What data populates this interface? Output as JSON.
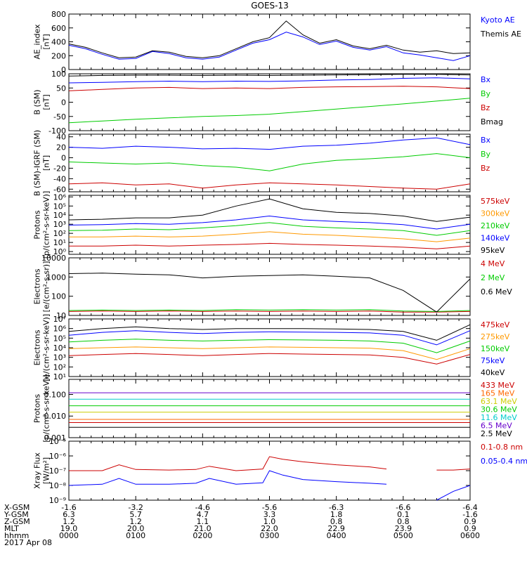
{
  "title": "GOES-13",
  "footer_date": "2017 Apr 08",
  "x_axis": {
    "rows": [
      {
        "label": "X-GSM",
        "values": [
          "-1.6",
          "-3.2",
          "-4.6",
          "-5.6",
          "-6.3",
          "-6.6",
          "-6.4"
        ]
      },
      {
        "label": "Y-GSM",
        "values": [
          "6.3",
          "5.7",
          "4.7",
          "3.3",
          "1.8",
          "0.1",
          "-1.6"
        ]
      },
      {
        "label": "Z-GSM",
        "values": [
          "1.2",
          "1.2",
          "1.1",
          "1.0",
          "0.8",
          "0.8",
          "0.9"
        ]
      },
      {
        "label": "MLT",
        "values": [
          "19.0",
          "20.0",
          "21.0",
          "22.0",
          "22.9",
          "23.9",
          "0.9"
        ]
      },
      {
        "label": "hhmm",
        "values": [
          "0000",
          "0100",
          "0200",
          "0300",
          "0400",
          "0500",
          "0600"
        ]
      }
    ]
  },
  "chart_data": [
    {
      "type": "line",
      "ylabel": "AE_index\n[nT]",
      "scale": "linear",
      "ylim": [
        0,
        800
      ],
      "ticks": [
        {
          "v": 0,
          "t": "0"
        },
        {
          "v": 200,
          "t": "200"
        },
        {
          "v": 400,
          "t": "400"
        },
        {
          "v": 600,
          "t": "600"
        },
        {
          "v": 800,
          "t": "800"
        }
      ],
      "x_hours": [
        0,
        0.25,
        0.5,
        0.75,
        1.0,
        1.25,
        1.5,
        1.75,
        2.0,
        2.25,
        2.5,
        2.75,
        3.0,
        3.25,
        3.5,
        3.75,
        4.0,
        4.25,
        4.5,
        4.75,
        5.0,
        5.25,
        5.5,
        5.75,
        6.0
      ],
      "series": [
        {
          "name": "Kyoto AE",
          "color": "#0000ff",
          "values": [
            350,
            300,
            220,
            150,
            160,
            260,
            230,
            170,
            150,
            180,
            280,
            380,
            430,
            540,
            470,
            360,
            410,
            320,
            280,
            330,
            240,
            210,
            170,
            130,
            200
          ]
        },
        {
          "name": "Themis AE",
          "color": "#000000",
          "values": [
            370,
            320,
            240,
            170,
            180,
            270,
            250,
            190,
            170,
            200,
            300,
            400,
            460,
            700,
            500,
            380,
            430,
            340,
            300,
            350,
            280,
            250,
            270,
            230,
            240
          ]
        }
      ]
    },
    {
      "type": "line",
      "ylabel": "B (SM)\n[nT]",
      "scale": "linear",
      "ylim": [
        -100,
        100
      ],
      "ticks": [
        {
          "v": -100,
          "t": "-100"
        },
        {
          "v": -50,
          "t": "-50"
        },
        {
          "v": 0,
          "t": "0"
        },
        {
          "v": 50,
          "t": "50"
        },
        {
          "v": 100,
          "t": "100"
        }
      ],
      "x_hours": [
        0,
        0.5,
        1.0,
        1.5,
        2.0,
        2.5,
        3.0,
        3.5,
        4.0,
        4.5,
        5.0,
        5.5,
        6.0
      ],
      "series": [
        {
          "name": "Bx",
          "color": "#0000ff",
          "values": [
            68,
            70,
            72,
            74,
            72,
            74,
            73,
            75,
            78,
            80,
            84,
            86,
            82
          ]
        },
        {
          "name": "By",
          "color": "#00cc00",
          "values": [
            -72,
            -66,
            -60,
            -55,
            -50,
            -47,
            -42,
            -33,
            -24,
            -15,
            -6,
            4,
            14
          ]
        },
        {
          "name": "Bz",
          "color": "#cc0000",
          "values": [
            40,
            45,
            50,
            52,
            48,
            50,
            48,
            52,
            54,
            55,
            56,
            54,
            48
          ]
        },
        {
          "name": "Bmag",
          "color": "#000000",
          "values": [
            92,
            94,
            95,
            95,
            94,
            95,
            94,
            95,
            96,
            97,
            98,
            98,
            96
          ]
        }
      ]
    },
    {
      "type": "line",
      "ylabel": "B (SM)-IGRF (SM)\n[nT]",
      "scale": "linear",
      "ylim": [
        -65,
        45
      ],
      "ticks": [
        {
          "v": -60,
          "t": "-60"
        },
        {
          "v": -40,
          "t": "-40"
        },
        {
          "v": -20,
          "t": "-20"
        },
        {
          "v": 0,
          "t": "0"
        },
        {
          "v": 20,
          "t": "20"
        },
        {
          "v": 40,
          "t": "40"
        }
      ],
      "x_hours": [
        0,
        0.5,
        1.0,
        1.5,
        2.0,
        2.5,
        3.0,
        3.5,
        4.0,
        4.5,
        5.0,
        5.5,
        6.0
      ],
      "series": [
        {
          "name": "Bx",
          "color": "#0000ff",
          "values": [
            20,
            18,
            22,
            20,
            17,
            18,
            16,
            22,
            24,
            28,
            34,
            38,
            25
          ]
        },
        {
          "name": "By",
          "color": "#00cc00",
          "values": [
            -8,
            -10,
            -12,
            -10,
            -15,
            -18,
            -25,
            -12,
            -5,
            -2,
            2,
            8,
            0
          ]
        },
        {
          "name": "Bz",
          "color": "#cc0000",
          "values": [
            -50,
            -48,
            -52,
            -50,
            -58,
            -52,
            -48,
            -50,
            -52,
            -55,
            -58,
            -60,
            -50
          ]
        }
      ]
    },
    {
      "type": "line",
      "ylabel": "Protons\n[p/(cm²-s-sr-keV)]",
      "scale": "log",
      "ylim": [
        0.5,
        1500000
      ],
      "ticks": [
        {
          "v": 1,
          "t": "10⁰"
        },
        {
          "v": 10,
          "t": "10¹"
        },
        {
          "v": 100,
          "t": "10²"
        },
        {
          "v": 1000,
          "t": "10³"
        },
        {
          "v": 10000,
          "t": "10⁴"
        },
        {
          "v": 100000,
          "t": "10⁵"
        },
        {
          "v": 1000000,
          "t": "10⁶"
        }
      ],
      "x_hours": [
        0,
        0.5,
        1.0,
        1.5,
        2.0,
        2.5,
        3.0,
        3.5,
        4.0,
        4.5,
        5.0,
        5.5,
        6.0
      ],
      "series": [
        {
          "name": "575keV",
          "color": "#cc0000",
          "values": [
            4,
            4,
            5,
            4,
            5,
            6,
            8,
            6,
            5,
            4,
            3,
            2,
            4
          ]
        },
        {
          "name": "300keV",
          "color": "#ff9900",
          "values": [
            40,
            40,
            50,
            40,
            50,
            80,
            150,
            80,
            60,
            40,
            25,
            12,
            30
          ]
        },
        {
          "name": "210keV",
          "color": "#00cc00",
          "values": [
            200,
            220,
            300,
            250,
            400,
            700,
            1500,
            600,
            400,
            300,
            200,
            60,
            200
          ]
        },
        {
          "name": "140keV",
          "color": "#0000ff",
          "values": [
            800,
            900,
            1200,
            1000,
            1500,
            3000,
            8000,
            3000,
            2000,
            1500,
            900,
            300,
            1000
          ]
        },
        {
          "name": "95keV",
          "color": "#000000",
          "values": [
            3000,
            3500,
            5000,
            5000,
            10000,
            100000,
            600000,
            50000,
            20000,
            15000,
            8000,
            2000,
            6000
          ]
        }
      ]
    },
    {
      "type": "line",
      "ylabel": "Electrons\n[e/(cm²-s-sr)]",
      "scale": "log",
      "ylim": [
        10,
        10000
      ],
      "ticks": [
        {
          "v": 10,
          "t": "10"
        },
        {
          "v": 100,
          "t": "100"
        },
        {
          "v": 1000,
          "t": "1000"
        },
        {
          "v": 10000,
          "t": "10000"
        }
      ],
      "x_hours": [
        0,
        0.5,
        1.0,
        1.5,
        2.0,
        2.5,
        3.0,
        3.5,
        4.0,
        4.5,
        5.0,
        5.5,
        6.0
      ],
      "series": [
        {
          "name": "4 MeV",
          "color": "#cc0000",
          "values": [
            16,
            17,
            16,
            17,
            16,
            17,
            16,
            17,
            16,
            17,
            15,
            15,
            16
          ]
        },
        {
          "name": "2 MeV",
          "color": "#00cc00",
          "values": [
            18,
            19,
            18,
            19,
            18,
            20,
            19,
            20,
            19,
            20,
            17,
            16,
            18
          ]
        },
        {
          "name": "0.6 MeV",
          "color": "#000000",
          "values": [
            1500,
            1600,
            1400,
            1300,
            900,
            1100,
            1200,
            1300,
            1100,
            900,
            200,
            15,
            800
          ]
        }
      ]
    },
    {
      "type": "line",
      "ylabel": "Electrons\n[e/(cm²-s-sr-keV)]",
      "scale": "log",
      "ylim": [
        10,
        10000000
      ],
      "ticks": [
        {
          "v": 10,
          "t": "10¹"
        },
        {
          "v": 100,
          "t": "10²"
        },
        {
          "v": 1000,
          "t": "10³"
        },
        {
          "v": 10000,
          "t": "10⁴"
        },
        {
          "v": 100000,
          "t": "10⁵"
        },
        {
          "v": 1000000,
          "t": "10⁶"
        },
        {
          "v": 10000000,
          "t": "10⁷"
        }
      ],
      "x_hours": [
        0,
        0.5,
        1.0,
        1.5,
        2.0,
        2.5,
        3.0,
        3.5,
        4.0,
        4.5,
        5.0,
        5.5,
        6.0
      ],
      "series": [
        {
          "name": "475keV",
          "color": "#cc0000",
          "values": [
            1500,
            2000,
            2500,
            2000,
            1500,
            2000,
            2500,
            2200,
            2000,
            1800,
            1000,
            200,
            2000
          ]
        },
        {
          "name": "275keV",
          "color": "#ff9900",
          "values": [
            8000,
            10000,
            12000,
            10000,
            8000,
            10000,
            12000,
            11000,
            10000,
            9000,
            5000,
            600,
            8000
          ]
        },
        {
          "name": "150keV",
          "color": "#00cc00",
          "values": [
            40000,
            60000,
            80000,
            60000,
            50000,
            60000,
            70000,
            65000,
            60000,
            50000,
            30000,
            3000,
            50000
          ]
        },
        {
          "name": "75keV",
          "color": "#0000ff",
          "values": [
            200000,
            400000,
            600000,
            400000,
            300000,
            400000,
            450000,
            420000,
            400000,
            350000,
            200000,
            20000,
            600000
          ]
        },
        {
          "name": "40keV",
          "color": "#000000",
          "values": [
            500000,
            1000000,
            1500000,
            1000000,
            800000,
            1000000,
            1000000,
            1000000,
            900000,
            800000,
            500000,
            60000,
            2500000
          ]
        }
      ]
    },
    {
      "type": "line",
      "ylabel": "Protons\n[p/(cm²-s-sr-keV)]",
      "scale": "log",
      "ylim": [
        0.001,
        0.5
      ],
      "ticks": [
        {
          "v": 0.001,
          "t": "0.001"
        },
        {
          "v": 0.01,
          "t": "0.010"
        },
        {
          "v": 0.1,
          "t": "0.100"
        }
      ],
      "x_hours": [
        0,
        0.5,
        1.0,
        1.5,
        2.0,
        2.5,
        3.0,
        3.5,
        4.0,
        4.5,
        5.0,
        5.5,
        6.0
      ],
      "series": [
        {
          "name": "433 MeV",
          "color": "#cc0000",
          "values": [
            0.005,
            0.005,
            0.005,
            0.005,
            0.005,
            0.005,
            0.005,
            0.005,
            0.005,
            0.005,
            0.005,
            0.005,
            0.005
          ]
        },
        {
          "name": "165 MeV",
          "color": "#ff6600",
          "values": [
            0.007,
            0.007,
            0.007,
            0.007,
            0.007,
            0.007,
            0.007,
            0.007,
            0.007,
            0.007,
            0.007,
            0.007,
            0.007
          ]
        },
        {
          "name": "63.1 MeV",
          "color": "#cccc00",
          "values": [
            0.015,
            0.015,
            0.015,
            0.015,
            0.015,
            0.015,
            0.015,
            0.015,
            0.015,
            0.015,
            0.015,
            0.015,
            0.015
          ]
        },
        {
          "name": "30.6 MeV",
          "color": "#00cc00",
          "values": [
            0.03,
            0.03,
            0.03,
            0.03,
            0.03,
            0.03,
            0.03,
            0.03,
            0.03,
            0.03,
            0.03,
            0.03,
            0.03
          ]
        },
        {
          "name": "11.6 MeV",
          "color": "#00cccc",
          "values": [
            0.06,
            0.06,
            0.06,
            0.06,
            0.06,
            0.06,
            0.06,
            0.06,
            0.06,
            0.06,
            0.06,
            0.06,
            0.06
          ]
        },
        {
          "name": "6.5 MeV",
          "color": "#6600cc",
          "values": [
            0.12,
            0.12,
            0.12,
            0.12,
            0.12,
            0.12,
            0.12,
            0.12,
            0.12,
            0.12,
            0.12,
            0.12,
            0.12
          ]
        },
        {
          "name": "2.5 MeV",
          "color": "#000000",
          "values": [
            0.003,
            0.003,
            0.003,
            0.003,
            0.003,
            0.003,
            0.003,
            0.003,
            0.003,
            0.003,
            0.003,
            0.003,
            0.003
          ]
        }
      ]
    },
    {
      "type": "line",
      "ylabel": "Xray Flux\n[W/m²]",
      "scale": "log",
      "ylim": [
        1e-09,
        1e-05
      ],
      "ticks": [
        {
          "v": 1e-09,
          "t": "10⁻⁹"
        },
        {
          "v": 1e-08,
          "t": "10⁻⁸"
        },
        {
          "v": 1e-07,
          "t": "10⁻⁷"
        },
        {
          "v": 1e-06,
          "t": "10⁻⁶"
        },
        {
          "v": 1e-05,
          "t": "10⁻⁵"
        }
      ],
      "x_hours": [
        0,
        0.5,
        0.75,
        1.0,
        1.5,
        1.9,
        2.1,
        2.5,
        2.9,
        3.0,
        3.2,
        3.5,
        4.0,
        4.5,
        4.75,
        5.25,
        5.5,
        5.75,
        6.0
      ],
      "series": [
        {
          "name": "0.1-0.8 nm",
          "color": "#cc0000",
          "values": [
            1e-07,
            1e-07,
            2.5e-07,
            1.2e-07,
            1.1e-07,
            1.2e-07,
            2e-07,
            1e-07,
            1.3e-07,
            9e-07,
            6e-07,
            4e-07,
            2.5e-07,
            1.8e-07,
            1.3e-07,
            null,
            1.1e-07,
            1.1e-07,
            1.3e-07
          ]
        },
        {
          "name": "0.05-0.4 nm",
          "color": "#0000ff",
          "values": [
            1e-08,
            1.2e-08,
            3e-08,
            1.2e-08,
            1.2e-08,
            1.4e-08,
            3e-08,
            1.2e-08,
            1.5e-08,
            1e-07,
            5e-08,
            2.5e-08,
            1.8e-08,
            1.4e-08,
            1.2e-08,
            null,
            1e-09,
            4e-09,
            1e-08
          ]
        }
      ]
    }
  ]
}
